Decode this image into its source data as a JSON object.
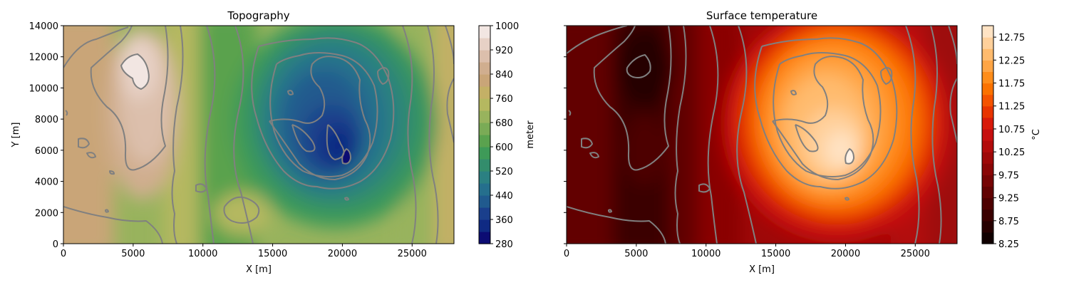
{
  "chart_data": [
    {
      "type": "heatmap",
      "subtype": "filled-contour",
      "title": "Topography",
      "xlabel": "X [m]",
      "ylabel": "Y [m]",
      "xlim": [
        0,
        28000
      ],
      "ylim": [
        0,
        14000
      ],
      "xticks": [
        "0",
        "5000",
        "10000",
        "15000",
        "20000",
        "25000"
      ],
      "yticks": [
        "0",
        "2000",
        "4000",
        "6000",
        "8000",
        "10000",
        "12000",
        "14000"
      ],
      "colorbar": {
        "label": "meter",
        "range": [
          280,
          1000
        ],
        "ticks": [
          "280",
          "360",
          "440",
          "520",
          "600",
          "680",
          "760",
          "840",
          "920",
          "1000"
        ],
        "levels": [
          280,
          320,
          360,
          400,
          440,
          480,
          520,
          560,
          600,
          640,
          680,
          720,
          760,
          800,
          840,
          880,
          920,
          960,
          1000
        ],
        "colors": [
          "#0c0c73",
          "#0f2a83",
          "#1a3f8c",
          "#205a8e",
          "#256f8d",
          "#2b8082",
          "#338d6c",
          "#3e9a58",
          "#5aa24e",
          "#7aab56",
          "#98b35d",
          "#b5b860",
          "#c4b066",
          "#c9a578",
          "#d0ae8f",
          "#dcbfac",
          "#e7d1c6",
          "#f2e6e2"
        ]
      },
      "features": {
        "ridge_high_x": 6000,
        "ridge_high_y": 10500,
        "ridge_high_value": 1000,
        "basin_low_x": 20000,
        "basin_low_y": 5500,
        "basin_low_value": 290
      }
    },
    {
      "type": "heatmap",
      "subtype": "filled-contour",
      "title": "Surface temperature",
      "xlabel": "X [m]",
      "ylabel": "",
      "xlim": [
        0,
        28000
      ],
      "ylim": [
        0,
        14000
      ],
      "xticks": [
        "0",
        "5000",
        "10000",
        "15000",
        "20000",
        "25000"
      ],
      "yticks_shown": false,
      "colorbar": {
        "label": "°C",
        "range": [
          8.25,
          13.0
        ],
        "ticks": [
          "8.25",
          "8.75",
          "9.25",
          "9.75",
          "10.25",
          "10.75",
          "11.25",
          "11.75",
          "12.25",
          "12.75"
        ],
        "levels": [
          8.25,
          8.5,
          8.75,
          9.0,
          9.25,
          9.5,
          9.75,
          10.0,
          10.25,
          10.5,
          10.75,
          11.0,
          11.25,
          11.5,
          11.75,
          12.0,
          12.25,
          12.5,
          12.75,
          13.0
        ],
        "colors": [
          "#100000",
          "#260000",
          "#3a0000",
          "#4e0000",
          "#620202",
          "#760404",
          "#8a0606",
          "#9e0808",
          "#b20b0b",
          "#c60f0f",
          "#d81a0a",
          "#e83400",
          "#f45300",
          "#fb7200",
          "#ff8d1a",
          "#ffa545",
          "#ffbb6e",
          "#ffd09b",
          "#ffe3c4"
        ]
      }
    }
  ]
}
